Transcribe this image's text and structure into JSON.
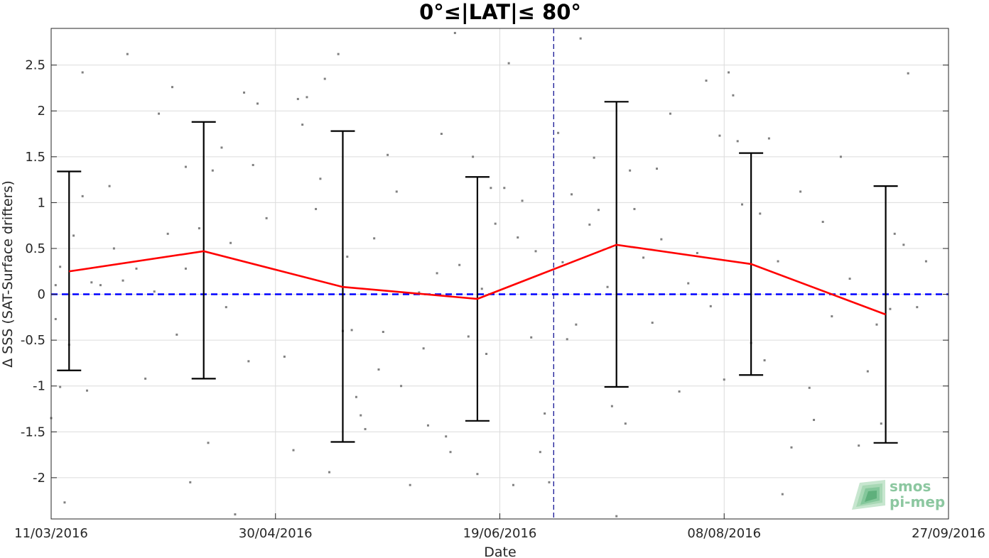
{
  "chart_data": {
    "type": "line",
    "title": "0°≤|LAT|≤ 80°",
    "xlabel": "Date",
    "ylabel": "Δ SSS (SAT-Surface drifters)",
    "x_range": [
      "2016-03-11",
      "2016-09-27"
    ],
    "ylim": [
      -2.45,
      2.9
    ],
    "x_ticks": [
      "2016-03-11",
      "2016-04-30",
      "2016-06-19",
      "2016-08-08",
      "2016-09-27"
    ],
    "x_tick_labels": [
      "11/03/2016",
      "30/04/2016",
      "19/06/2016",
      "08/08/2016",
      "27/09/2016"
    ],
    "y_ticks": [
      -2,
      -1.5,
      -1,
      -0.5,
      0,
      0.5,
      1,
      1.5,
      2,
      2.5
    ],
    "y_tick_labels": [
      "-2",
      "-1.5",
      "-1",
      "-0.5",
      "0",
      "0.5",
      "1",
      "1.5",
      "2",
      "2.5"
    ],
    "grid": true,
    "series": [
      {
        "type": "line_errorbar",
        "color": "#ff0000",
        "x": [
          "2016-03-15",
          "2016-04-14",
          "2016-05-15",
          "2016-06-14",
          "2016-07-15",
          "2016-08-14",
          "2016-09-13"
        ],
        "y": [
          0.25,
          0.47,
          0.08,
          -0.05,
          0.54,
          0.33,
          -0.22
        ],
        "error_low": [
          -0.83,
          -0.92,
          -1.61,
          -1.38,
          -1.01,
          -0.88,
          -1.62
        ],
        "error_high": [
          1.34,
          1.88,
          1.78,
          1.28,
          2.1,
          1.54,
          1.18
        ]
      }
    ],
    "reference_line": {
      "y": 0,
      "color": "#0000ff",
      "style": "dashed"
    },
    "vertical_line": {
      "x": "2016-07-01",
      "color": "#00008b",
      "style": "dashed"
    },
    "scatter_points": {
      "color": "#808080",
      "points": [
        [
          "2016-03-11",
          -1.35
        ],
        [
          "2016-03-12",
          -0.27
        ],
        [
          "2016-03-12",
          0.1
        ],
        [
          "2016-03-13",
          -1.01
        ],
        [
          "2016-03-13",
          0.3
        ],
        [
          "2016-03-14",
          -2.27
        ],
        [
          "2016-03-15",
          -0.55
        ],
        [
          "2016-03-16",
          0.64
        ],
        [
          "2016-03-18",
          2.42
        ],
        [
          "2016-03-18",
          1.07
        ],
        [
          "2016-03-19",
          -1.05
        ],
        [
          "2016-03-20",
          0.13
        ],
        [
          "2016-03-22",
          0.1
        ],
        [
          "2016-03-24",
          1.18
        ],
        [
          "2016-03-25",
          0.5
        ],
        [
          "2016-03-27",
          0.15
        ],
        [
          "2016-03-28",
          2.62
        ],
        [
          "2016-03-30",
          0.28
        ],
        [
          "2016-04-01",
          -0.92
        ],
        [
          "2016-04-03",
          0.03
        ],
        [
          "2016-04-04",
          1.97
        ],
        [
          "2016-04-06",
          0.66
        ],
        [
          "2016-04-07",
          2.26
        ],
        [
          "2016-04-08",
          -0.44
        ],
        [
          "2016-04-10",
          0.28
        ],
        [
          "2016-04-10",
          1.39
        ],
        [
          "2016-04-11",
          -2.05
        ],
        [
          "2016-04-13",
          0.72
        ],
        [
          "2016-04-15",
          -1.62
        ],
        [
          "2016-04-16",
          1.35
        ],
        [
          "2016-04-18",
          1.6
        ],
        [
          "2016-04-19",
          -0.14
        ],
        [
          "2016-04-20",
          0.56
        ],
        [
          "2016-04-21",
          -2.4
        ],
        [
          "2016-04-23",
          2.2
        ],
        [
          "2016-04-24",
          -0.73
        ],
        [
          "2016-04-25",
          1.41
        ],
        [
          "2016-04-26",
          2.08
        ],
        [
          "2016-04-28",
          0.83
        ],
        [
          "2016-05-02",
          -0.68
        ],
        [
          "2016-05-04",
          -1.7
        ],
        [
          "2016-05-05",
          2.13
        ],
        [
          "2016-05-06",
          1.85
        ],
        [
          "2016-05-07",
          2.15
        ],
        [
          "2016-05-09",
          0.93
        ],
        [
          "2016-05-10",
          1.26
        ],
        [
          "2016-05-11",
          2.35
        ],
        [
          "2016-05-12",
          -1.94
        ],
        [
          "2016-05-14",
          2.62
        ],
        [
          "2016-05-15",
          -0.4
        ],
        [
          "2016-05-16",
          0.41
        ],
        [
          "2016-05-17",
          -0.39
        ],
        [
          "2016-05-18",
          -1.12
        ],
        [
          "2016-05-19",
          -1.32
        ],
        [
          "2016-05-20",
          -1.47
        ],
        [
          "2016-05-22",
          0.61
        ],
        [
          "2016-05-23",
          -0.82
        ],
        [
          "2016-05-24",
          -0.41
        ],
        [
          "2016-05-25",
          1.52
        ],
        [
          "2016-05-27",
          1.12
        ],
        [
          "2016-05-28",
          -1.0
        ],
        [
          "2016-05-30",
          -2.08
        ],
        [
          "2016-06-01",
          0.02
        ],
        [
          "2016-06-02",
          -0.59
        ],
        [
          "2016-06-03",
          -1.43
        ],
        [
          "2016-06-05",
          0.23
        ],
        [
          "2016-06-06",
          1.75
        ],
        [
          "2016-06-07",
          -1.55
        ],
        [
          "2016-06-08",
          -1.72
        ],
        [
          "2016-06-09",
          2.85
        ],
        [
          "2016-06-10",
          0.32
        ],
        [
          "2016-06-12",
          -0.46
        ],
        [
          "2016-06-13",
          1.5
        ],
        [
          "2016-06-14",
          -1.96
        ],
        [
          "2016-06-15",
          0.06
        ],
        [
          "2016-06-16",
          -0.65
        ],
        [
          "2016-06-17",
          1.16
        ],
        [
          "2016-06-18",
          0.77
        ],
        [
          "2016-06-20",
          1.16
        ],
        [
          "2016-06-21",
          2.52
        ],
        [
          "2016-06-22",
          -2.08
        ],
        [
          "2016-06-23",
          0.62
        ],
        [
          "2016-06-24",
          1.02
        ],
        [
          "2016-06-26",
          -0.47
        ],
        [
          "2016-06-27",
          0.47
        ],
        [
          "2016-06-28",
          -1.72
        ],
        [
          "2016-06-29",
          -1.3
        ],
        [
          "2016-06-30",
          -2.05
        ],
        [
          "2016-07-02",
          1.76
        ],
        [
          "2016-07-03",
          0.35
        ],
        [
          "2016-07-04",
          -0.49
        ],
        [
          "2016-07-05",
          1.09
        ],
        [
          "2016-07-06",
          -0.33
        ],
        [
          "2016-07-07",
          2.79
        ],
        [
          "2016-07-09",
          0.76
        ],
        [
          "2016-07-10",
          1.49
        ],
        [
          "2016-07-11",
          0.92
        ],
        [
          "2016-07-13",
          0.08
        ],
        [
          "2016-07-14",
          -1.22
        ],
        [
          "2016-07-15",
          -2.42
        ],
        [
          "2016-07-17",
          -1.41
        ],
        [
          "2016-07-18",
          1.35
        ],
        [
          "2016-07-19",
          0.93
        ],
        [
          "2016-07-21",
          0.4
        ],
        [
          "2016-07-23",
          -0.31
        ],
        [
          "2016-07-24",
          1.37
        ],
        [
          "2016-07-25",
          0.6
        ],
        [
          "2016-07-27",
          1.97
        ],
        [
          "2016-07-29",
          -1.06
        ],
        [
          "2016-07-31",
          0.12
        ],
        [
          "2016-08-02",
          0.45
        ],
        [
          "2016-08-04",
          2.33
        ],
        [
          "2016-08-05",
          -0.13
        ],
        [
          "2016-08-07",
          1.73
        ],
        [
          "2016-08-08",
          -0.93
        ],
        [
          "2016-08-09",
          2.42
        ],
        [
          "2016-08-10",
          2.17
        ],
        [
          "2016-08-11",
          1.67
        ],
        [
          "2016-08-12",
          0.98
        ],
        [
          "2016-08-14",
          -0.53
        ],
        [
          "2016-08-16",
          0.88
        ],
        [
          "2016-08-17",
          -0.72
        ],
        [
          "2016-08-18",
          1.7
        ],
        [
          "2016-08-20",
          0.36
        ],
        [
          "2016-08-21",
          -2.18
        ],
        [
          "2016-08-23",
          -1.67
        ],
        [
          "2016-08-25",
          1.12
        ],
        [
          "2016-08-27",
          -1.02
        ],
        [
          "2016-08-28",
          -1.37
        ],
        [
          "2016-08-30",
          0.79
        ],
        [
          "2016-09-01",
          -0.24
        ],
        [
          "2016-09-03",
          1.5
        ],
        [
          "2016-09-05",
          0.17
        ],
        [
          "2016-09-07",
          -1.65
        ],
        [
          "2016-09-09",
          -0.84
        ],
        [
          "2016-09-11",
          -0.33
        ],
        [
          "2016-09-12",
          -1.41
        ],
        [
          "2016-09-14",
          -0.16
        ],
        [
          "2016-09-15",
          0.66
        ],
        [
          "2016-09-17",
          0.54
        ],
        [
          "2016-09-18",
          2.41
        ],
        [
          "2016-09-20",
          -0.14
        ],
        [
          "2016-09-22",
          0.36
        ]
      ]
    }
  },
  "logo": {
    "line1": "smos",
    "line2": "pi-mep"
  }
}
